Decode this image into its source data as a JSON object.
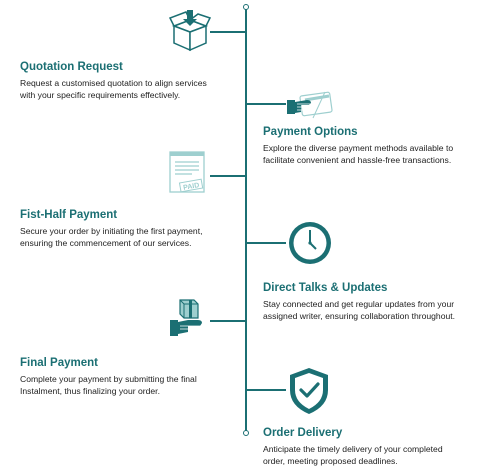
{
  "steps": [
    {
      "title": "Quotation Request",
      "lines": [
        "Request a customised quotation to align services",
        "with your specific requirements effectively."
      ],
      "icon": "open-box-icon"
    },
    {
      "title": "Payment Options",
      "lines": [
        "Explore the diverse payment methods available to",
        "facilitate convenient and hassle-free transactions."
      ],
      "icon": "card-payment-icon"
    },
    {
      "title": "Fist-Half Payment",
      "lines": [
        "Secure your order by initiating the first payment,",
        "ensuring the commencement of our services."
      ],
      "icon": "paid-invoice-icon",
      "stamp": "PAID"
    },
    {
      "title": "Direct Talks & Updates",
      "lines": [
        "Stay connected and get regular updates from your",
        "assigned writer, ensuring collaboration throughout."
      ],
      "icon": "clock-icon"
    },
    {
      "title": "Final Payment",
      "lines": [
        "Complete your payment by submitting the final",
        "Instalment, thus finalizing your order."
      ],
      "icon": "hand-package-icon"
    },
    {
      "title": "Order Delivery",
      "lines": [
        "Anticipate the timely delivery of your completed",
        "order, meeting proposed deadlines."
      ],
      "icon": "shield-check-icon"
    }
  ],
  "colors": {
    "accent": "#1b6f73",
    "accent_light": "#9ecfcf",
    "text": "#222222"
  }
}
